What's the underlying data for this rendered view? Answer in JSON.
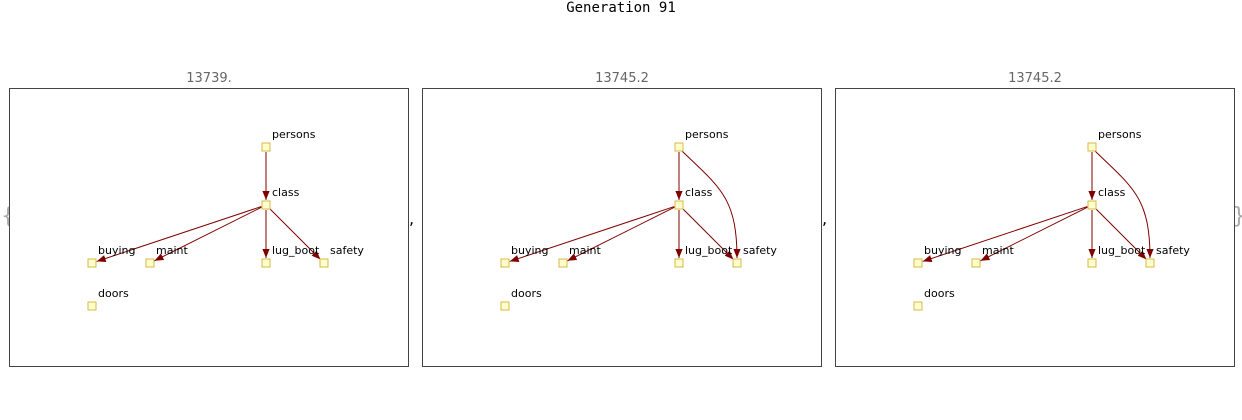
{
  "title": "Generation 91",
  "brace_open": "{",
  "brace_close": "}",
  "separator": ",",
  "colors": {
    "edge": "#800000",
    "node_fill": "#ffffcc",
    "node_stroke": "#d4b84a",
    "frame": "#444444",
    "score_text": "#666666"
  },
  "panels": [
    {
      "score": "13739.",
      "nodes": [
        "persons",
        "class",
        "buying",
        "maint",
        "lug_boot",
        "safety",
        "doors"
      ],
      "edges": [
        [
          "persons",
          "class"
        ],
        [
          "class",
          "buying"
        ],
        [
          "class",
          "maint"
        ],
        [
          "class",
          "lug_boot"
        ],
        [
          "class",
          "safety"
        ]
      ]
    },
    {
      "score": "13745.2",
      "nodes": [
        "persons",
        "class",
        "buying",
        "maint",
        "lug_boot",
        "safety",
        "doors"
      ],
      "edges": [
        [
          "persons",
          "class"
        ],
        [
          "persons",
          "safety"
        ],
        [
          "class",
          "buying"
        ],
        [
          "class",
          "maint"
        ],
        [
          "class",
          "lug_boot"
        ],
        [
          "class",
          "safety"
        ]
      ]
    },
    {
      "score": "13745.2",
      "nodes": [
        "persons",
        "class",
        "buying",
        "maint",
        "lug_boot",
        "safety",
        "doors"
      ],
      "edges": [
        [
          "persons",
          "class"
        ],
        [
          "persons",
          "safety"
        ],
        [
          "class",
          "buying"
        ],
        [
          "class",
          "maint"
        ],
        [
          "class",
          "lug_boot"
        ],
        [
          "class",
          "safety"
        ]
      ]
    }
  ]
}
